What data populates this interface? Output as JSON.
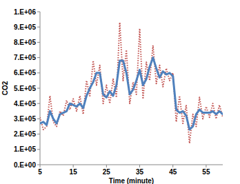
{
  "chart_data": {
    "type": "line",
    "x_label": "Time (minute)",
    "y_label": "CO2",
    "x": [
      5,
      6,
      7,
      8,
      9,
      10,
      11,
      12,
      13,
      14,
      15,
      16,
      17,
      18,
      19,
      20,
      21,
      22,
      23,
      24,
      25,
      26,
      27,
      28,
      29,
      30,
      31,
      32,
      33,
      34,
      35,
      36,
      37,
      38,
      39,
      40,
      41,
      42,
      43,
      44,
      45,
      46,
      47,
      48,
      49,
      50,
      51,
      52,
      53,
      54,
      55,
      56,
      57,
      58,
      59,
      60
    ],
    "series": [
      {
        "color": "#c0504d",
        "line_style": "dotted",
        "values": [
          310000,
          230000,
          250000,
          450000,
          280000,
          250000,
          350000,
          320000,
          420000,
          360000,
          430000,
          350000,
          450000,
          330000,
          550000,
          450000,
          680000,
          520000,
          650000,
          400000,
          520000,
          400000,
          560000,
          440000,
          930000,
          550000,
          750000,
          400000,
          540000,
          460000,
          890000,
          430000,
          670000,
          550000,
          780000,
          530000,
          650000,
          510000,
          630000,
          550000,
          600000,
          280000,
          450000,
          270000,
          390000,
          140000,
          330000,
          250000,
          440000,
          300000,
          380000,
          310000,
          400000,
          300000,
          390000,
          310000
        ]
      },
      {
        "color": "#4f81bd",
        "line_style": "solid",
        "values": [
          270000,
          280000,
          260000,
          350000,
          300000,
          270000,
          330000,
          340000,
          350000,
          400000,
          390000,
          380000,
          400000,
          370000,
          450000,
          500000,
          540000,
          600000,
          600000,
          460000,
          440000,
          480000,
          450000,
          520000,
          680000,
          680000,
          600000,
          460000,
          490000,
          550000,
          620000,
          520000,
          560000,
          640000,
          700000,
          630000,
          570000,
          610000,
          590000,
          600000,
          580000,
          360000,
          340000,
          350000,
          320000,
          230000,
          250000,
          330000,
          360000,
          340000,
          340000,
          340000,
          350000,
          330000,
          350000,
          330000
        ]
      }
    ],
    "xlim": [
      5,
      60
    ],
    "xticks": [
      5,
      15,
      25,
      35,
      45,
      55
    ],
    "ylim": [
      0,
      1000000
    ],
    "yticks": [
      {
        "value": 0,
        "label": "0.E+00"
      },
      {
        "value": 100000,
        "label": "1.E+05"
      },
      {
        "value": 200000,
        "label": "2.E+05"
      },
      {
        "value": 300000,
        "label": "3.E+05"
      },
      {
        "value": 400000,
        "label": "4.E+05"
      },
      {
        "value": 500000,
        "label": "5.E+05"
      },
      {
        "value": 600000,
        "label": "6.E+05"
      },
      {
        "value": 700000,
        "label": "7.E+05"
      },
      {
        "value": 800000,
        "label": "8.E+05"
      },
      {
        "value": 900000,
        "label": "9.E+05"
      },
      {
        "value": 1000000,
        "label": "1.E+06"
      }
    ],
    "grid": false
  }
}
